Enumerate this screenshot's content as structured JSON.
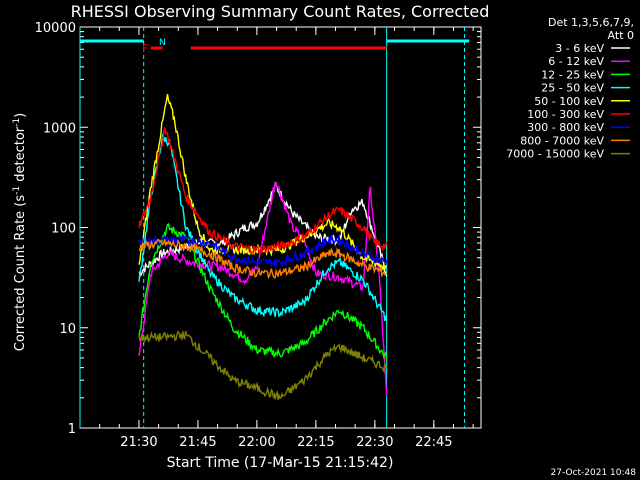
{
  "chart_data": {
    "type": "line",
    "title": "RHESSI Observing Summary Count Rates, Corrected",
    "xlabel": "Start Time (17-Mar-15 21:15:42)",
    "ylabel_main": "Corrected Count Rate (s",
    "ylabel_sup1": "-1",
    "ylabel_mid": " detector",
    "ylabel_sup2": "-1",
    "ylabel_end": ")",
    "y_scale": "log",
    "ylim": [
      1,
      10000
    ],
    "xlim_minutes": [
      21.25,
      22.95
    ],
    "x_ticks": [
      "21:30",
      "21:45",
      "22:00",
      "22:15",
      "22:30",
      "22:45"
    ],
    "y_ticks": [
      "1",
      "10",
      "100",
      "1000",
      "10000"
    ],
    "legend_header": [
      "Det 1,3,5,6,7,9,",
      "Att 0"
    ],
    "legend_placement": "right",
    "date_stamp": "27-Oct-2021 10:48",
    "flags": {
      "F": "F",
      "N": "N"
    },
    "series": [
      {
        "name": "3 - 6 keV",
        "color": "#ffffff",
        "key_points": [
          [
            21.5,
            35
          ],
          [
            21.6,
            55
          ],
          [
            21.75,
            70
          ],
          [
            21.85,
            70
          ],
          [
            21.95,
            100
          ],
          [
            22.0,
            110
          ],
          [
            22.08,
            260
          ],
          [
            22.15,
            140
          ],
          [
            22.25,
            80
          ],
          [
            22.35,
            75
          ],
          [
            22.4,
            150
          ],
          [
            22.45,
            180
          ],
          [
            22.5,
            80
          ],
          [
            22.55,
            35
          ]
        ]
      },
      {
        "name": "6 - 12 keV",
        "color": "#ff00ff",
        "key_points": [
          [
            21.5,
            5
          ],
          [
            21.55,
            35
          ],
          [
            21.62,
            55
          ],
          [
            21.72,
            45
          ],
          [
            21.85,
            40
          ],
          [
            21.95,
            30
          ],
          [
            22.0,
            40
          ],
          [
            22.08,
            300
          ],
          [
            22.15,
            100
          ],
          [
            22.2,
            75
          ],
          [
            22.25,
            35
          ],
          [
            22.35,
            32
          ],
          [
            22.45,
            25
          ],
          [
            22.48,
            250
          ],
          [
            22.52,
            30
          ],
          [
            22.55,
            2
          ]
        ]
      },
      {
        "name": "12 - 25 keV",
        "color": "#00ff00",
        "key_points": [
          [
            21.5,
            8
          ],
          [
            21.55,
            45
          ],
          [
            21.62,
            100
          ],
          [
            21.7,
            80
          ],
          [
            21.8,
            25
          ],
          [
            21.9,
            10
          ],
          [
            22.0,
            6
          ],
          [
            22.1,
            5.5
          ],
          [
            22.2,
            7
          ],
          [
            22.3,
            12
          ],
          [
            22.35,
            15
          ],
          [
            22.45,
            10
          ],
          [
            22.55,
            5
          ]
        ]
      },
      {
        "name": "25 - 50 keV",
        "color": "#00ffff",
        "key_points": [
          [
            21.5,
            28
          ],
          [
            21.55,
            200
          ],
          [
            21.6,
            800
          ],
          [
            21.63,
            700
          ],
          [
            21.7,
            100
          ],
          [
            21.8,
            35
          ],
          [
            21.9,
            20
          ],
          [
            22.0,
            15
          ],
          [
            22.1,
            14
          ],
          [
            22.2,
            18
          ],
          [
            22.3,
            40
          ],
          [
            22.35,
            45
          ],
          [
            22.45,
            30
          ],
          [
            22.55,
            12
          ]
        ]
      },
      {
        "name": "50 - 100 keV",
        "color": "#ffff00",
        "key_points": [
          [
            21.5,
            40
          ],
          [
            21.55,
            250
          ],
          [
            21.62,
            2000
          ],
          [
            21.65,
            1200
          ],
          [
            21.7,
            300
          ],
          [
            21.75,
            100
          ],
          [
            21.8,
            60
          ],
          [
            21.9,
            60
          ],
          [
            22.0,
            60
          ],
          [
            22.1,
            60
          ],
          [
            22.2,
            80
          ],
          [
            22.3,
            110
          ],
          [
            22.35,
            100
          ],
          [
            22.45,
            50
          ],
          [
            22.55,
            40
          ]
        ]
      },
      {
        "name": "100 - 300 keV",
        "color": "#ff0000",
        "key_points": [
          [
            21.5,
            100
          ],
          [
            21.55,
            200
          ],
          [
            21.61,
            1000
          ],
          [
            21.65,
            500
          ],
          [
            21.7,
            200
          ],
          [
            21.8,
            90
          ],
          [
            21.9,
            65
          ],
          [
            22.0,
            60
          ],
          [
            22.1,
            65
          ],
          [
            22.2,
            80
          ],
          [
            22.3,
            130
          ],
          [
            22.35,
            150
          ],
          [
            22.45,
            100
          ],
          [
            22.5,
            70
          ],
          [
            22.55,
            65
          ]
        ]
      },
      {
        "name": "300 - 800 keV",
        "color": "#0000ff",
        "key_points": [
          [
            21.5,
            70
          ],
          [
            21.6,
            75
          ],
          [
            21.7,
            75
          ],
          [
            21.8,
            70
          ],
          [
            21.9,
            50
          ],
          [
            22.0,
            45
          ],
          [
            22.1,
            45
          ],
          [
            22.2,
            55
          ],
          [
            22.3,
            75
          ],
          [
            22.35,
            75
          ],
          [
            22.45,
            55
          ],
          [
            22.55,
            45
          ]
        ]
      },
      {
        "name": "800 - 7000 keV",
        "color": "#ff8000",
        "key_points": [
          [
            21.5,
            65
          ],
          [
            21.6,
            70
          ],
          [
            21.7,
            65
          ],
          [
            21.8,
            55
          ],
          [
            21.9,
            40
          ],
          [
            22.0,
            35
          ],
          [
            22.1,
            35
          ],
          [
            22.2,
            40
          ],
          [
            22.3,
            55
          ],
          [
            22.35,
            55
          ],
          [
            22.45,
            42
          ],
          [
            22.55,
            35
          ]
        ]
      },
      {
        "name": "7000 - 15000 keV",
        "color": "#808000",
        "key_points": [
          [
            21.5,
            8
          ],
          [
            21.6,
            8
          ],
          [
            21.7,
            8.5
          ],
          [
            21.8,
            5
          ],
          [
            21.9,
            3
          ],
          [
            22.0,
            2.5
          ],
          [
            22.1,
            2
          ],
          [
            22.2,
            3
          ],
          [
            22.3,
            5.5
          ],
          [
            22.35,
            6.5
          ],
          [
            22.45,
            5
          ],
          [
            22.55,
            4
          ]
        ]
      }
    ],
    "attenuator_bars": [
      {
        "color": "#00ffff",
        "from": 21.25,
        "to": 21.52
      },
      {
        "color": "#00ffff",
        "from": 22.55,
        "to": 22.9
      }
    ],
    "flag_bars": [
      {
        "color": "#ff0000",
        "from": 21.55,
        "to": 21.6
      },
      {
        "color": "#ff0000",
        "from": 21.72,
        "to": 22.55
      }
    ],
    "vertical_lines": [
      {
        "color": "#00ffff",
        "at": 21.52,
        "style": "dashed"
      },
      {
        "color": "#00ffff",
        "at": 22.55,
        "style": "solid"
      },
      {
        "color": "#00ffff",
        "at": 22.88,
        "style": "dashed"
      }
    ]
  }
}
